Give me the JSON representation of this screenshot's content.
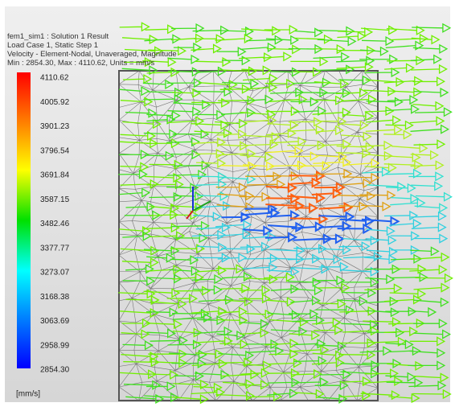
{
  "header": {
    "lines": [
      "fem1_sim1 : Solution 1 Result",
      "Load Case 1, Static Step 1",
      "Velocity - Element-Nodal, Unaveraged, Magnitude",
      "Min : 2854.30, Max : 4110.62, Units = mm/s"
    ]
  },
  "legend": {
    "labels": [
      "4110.62",
      "4005.92",
      "3901.23",
      "3796.54",
      "3691.84",
      "3587.15",
      "3482.46",
      "3377.77",
      "3273.07",
      "3168.38",
      "3063.69",
      "2958.99",
      "2854.30"
    ],
    "unit": "[mm/s]"
  }
}
